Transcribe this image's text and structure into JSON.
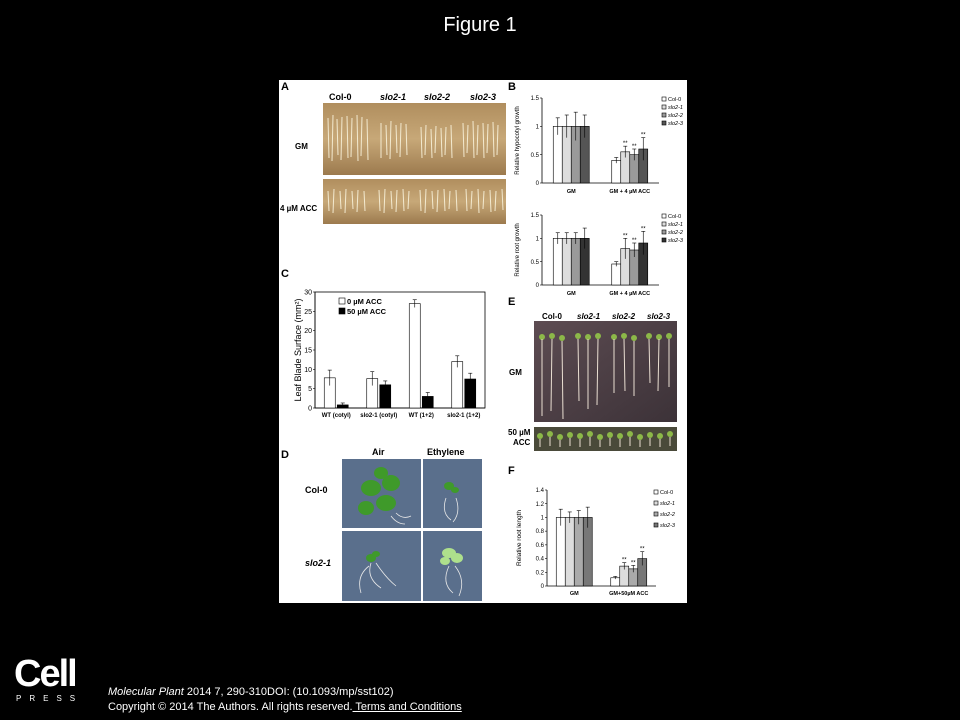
{
  "slide": {
    "title": "Figure 1",
    "citation_journal": "Molecular Plant",
    "citation_rest": " 2014 7, 290-310DOI: (10.1093/mp/sst102)",
    "copyright": "Copyright © 2014 The Authors. All rights reserved.",
    "terms_link": " Terms and Conditions",
    "logo_main": "Cell",
    "logo_sub": "PRESS"
  },
  "panel_a": {
    "label": "A",
    "cols": [
      "Col-0",
      "slo2-1",
      "slo2-2",
      "slo2-3"
    ],
    "rows": [
      "GM",
      "4 µM ACC"
    ]
  },
  "panel_c": {
    "label": "C"
  },
  "panel_d": {
    "label": "D",
    "cols": [
      "Air",
      "Ethylene"
    ],
    "rows": [
      "Col-0",
      "slo2-1"
    ]
  },
  "panel_e": {
    "label": "E",
    "cols": [
      "Col-0",
      "slo2-1",
      "slo2-2",
      "slo2-3"
    ],
    "rows": [
      "GM",
      "50 µM",
      "ACC"
    ]
  },
  "chart_data": [
    {
      "id": "B-top",
      "panel_label": "B",
      "type": "bar",
      "ylabel": "Relative hypocotyl growth",
      "ylim": [
        0,
        1.5
      ],
      "yticks": [
        "0",
        "0.5",
        "1",
        "1.5"
      ],
      "categories": [
        "GM",
        "GM + 4 µM ACC"
      ],
      "series": [
        {
          "name": "Col-0",
          "fill": "#ffffff",
          "values": [
            1.0,
            0.4
          ],
          "err": [
            0.15,
            0.05
          ],
          "sig": [
            "",
            ""
          ]
        },
        {
          "name": "slo2-1",
          "fill": "#dddddd",
          "values": [
            1.0,
            0.55
          ],
          "err": [
            0.2,
            0.1
          ],
          "sig": [
            "",
            "**"
          ]
        },
        {
          "name": "slo2-2",
          "fill": "#9a9a9a",
          "values": [
            1.0,
            0.5
          ],
          "err": [
            0.25,
            0.1
          ],
          "sig": [
            "",
            "**"
          ]
        },
        {
          "name": "slo2-3",
          "fill": "#555555",
          "values": [
            1.0,
            0.6
          ],
          "err": [
            0.2,
            0.2
          ],
          "sig": [
            "",
            "**"
          ]
        }
      ],
      "legend_position": "top-right"
    },
    {
      "id": "B-bottom",
      "type": "bar",
      "ylabel": "Relative root growth",
      "ylim": [
        0,
        1.5
      ],
      "yticks": [
        "0",
        "0.5",
        "1",
        "1.5"
      ],
      "categories": [
        "GM",
        "GM + 4 µM ACC"
      ],
      "series": [
        {
          "name": "Col-0",
          "fill": "#ffffff",
          "values": [
            1.0,
            0.45
          ],
          "err": [
            0.12,
            0.05
          ],
          "sig": [
            "",
            ""
          ]
        },
        {
          "name": "slo2-1",
          "fill": "#dddddd",
          "values": [
            1.0,
            0.78
          ],
          "err": [
            0.12,
            0.22
          ],
          "sig": [
            "",
            "**"
          ]
        },
        {
          "name": "slo2-2",
          "fill": "#9a9a9a",
          "values": [
            1.0,
            0.75
          ],
          "err": [
            0.12,
            0.15
          ],
          "sig": [
            "",
            "**"
          ]
        },
        {
          "name": "slo2-3",
          "fill": "#333333",
          "values": [
            1.0,
            0.9
          ],
          "err": [
            0.22,
            0.25
          ],
          "sig": [
            "",
            "**"
          ]
        }
      ],
      "legend_position": "top-right"
    },
    {
      "id": "C",
      "type": "bar",
      "ylabel": "Leaf Blade Surface (mm²)",
      "ylim": [
        0,
        30
      ],
      "yticks": [
        "0",
        "5",
        "10",
        "15",
        "20",
        "25",
        "30"
      ],
      "categories": [
        "WT (cotyl)",
        "slo2-1 (cotyl)",
        "WT (1+2)",
        "slo2-1 (1+2)"
      ],
      "series": [
        {
          "name": "0 µM ACC",
          "fill": "#ffffff",
          "values": [
            7.8,
            7.6,
            27.0,
            12.0
          ],
          "err": [
            2.0,
            1.8,
            1.0,
            1.5
          ],
          "sig": [
            "",
            "",
            "",
            ""
          ]
        },
        {
          "name": "50 µM ACC",
          "fill": "#000000",
          "values": [
            0.8,
            6.0,
            3.0,
            7.5
          ],
          "err": [
            0.5,
            1.0,
            1.0,
            1.5
          ],
          "sig": [
            "",
            "",
            "",
            ""
          ]
        }
      ],
      "legend_position": "top-left"
    },
    {
      "id": "F",
      "panel_label": "F",
      "type": "bar",
      "ylabel": "Relative root length",
      "ylim": [
        0,
        1.4
      ],
      "yticks": [
        "0",
        "0.2",
        "0.4",
        "0.6",
        "0.8",
        "1",
        "1.2",
        "1.4"
      ],
      "categories": [
        "GM",
        "GM+50µM ACC"
      ],
      "series": [
        {
          "name": "Col-0",
          "fill": "#ffffff",
          "values": [
            1.0,
            0.12
          ],
          "err": [
            0.12,
            0.02
          ],
          "sig": [
            "",
            ""
          ]
        },
        {
          "name": "slo2-1",
          "fill": "#dddddd",
          "values": [
            1.0,
            0.29
          ],
          "err": [
            0.08,
            0.05
          ],
          "sig": [
            "",
            "**"
          ]
        },
        {
          "name": "slo2-2",
          "fill": "#aaaaaa",
          "values": [
            1.0,
            0.25
          ],
          "err": [
            0.1,
            0.05
          ],
          "sig": [
            "",
            "**"
          ]
        },
        {
          "name": "slo2-3",
          "fill": "#777777",
          "values": [
            1.0,
            0.4
          ],
          "err": [
            0.15,
            0.1
          ],
          "sig": [
            "",
            "**"
          ]
        }
      ],
      "legend_position": "top-right"
    }
  ]
}
